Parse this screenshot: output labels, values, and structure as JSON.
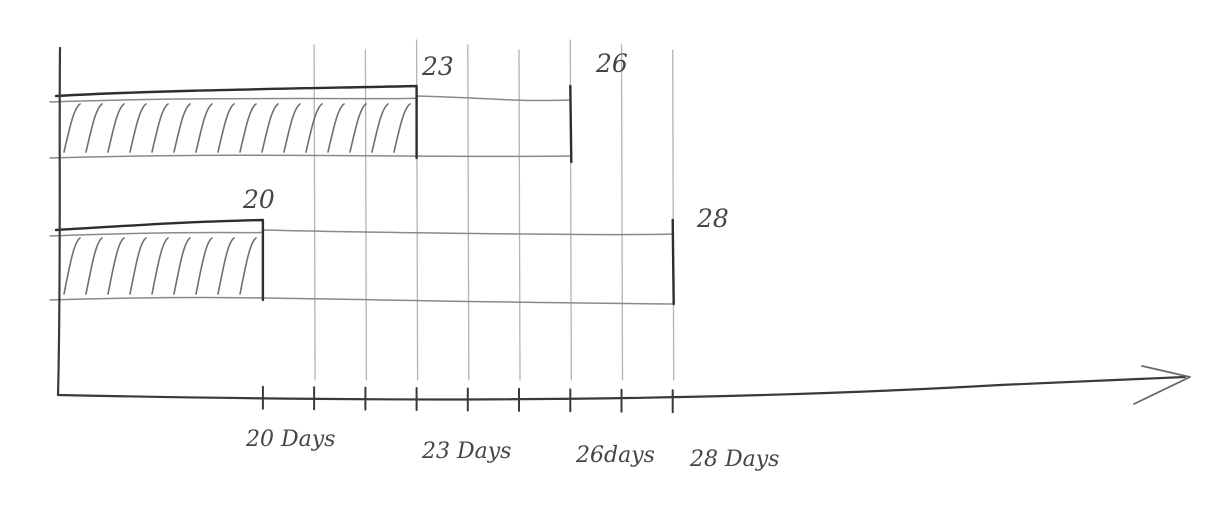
{
  "chart_data": {
    "type": "bar",
    "orientation": "horizontal",
    "style": "hand-drawn pencil sketch",
    "title": "",
    "xlabel": "",
    "ylabel": "",
    "x_tick_labels": [
      "20 Days",
      "23 Days",
      "26days",
      "28 Days"
    ],
    "x_ticks": [
      20,
      23,
      26,
      28
    ],
    "xlim": [
      16,
      38
    ],
    "grid": "vertical lines",
    "bars": [
      {
        "filled_end": 23,
        "total_end": 26,
        "filled_label": "23",
        "total_label": "26"
      },
      {
        "filled_end": 20,
        "total_end": 28,
        "filled_label": "20",
        "total_label": "28"
      }
    ]
  },
  "colors": {
    "pencil_dark": "#2e2e2e",
    "pencil_light": "#8a8a8a",
    "paper": "#ffffff"
  }
}
